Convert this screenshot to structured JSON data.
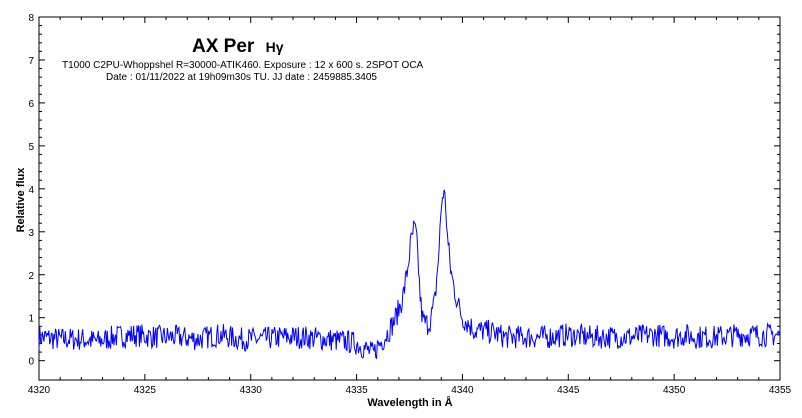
{
  "chart_data": {
    "type": "line",
    "title": "AX Per",
    "title_suffix": "Hγ",
    "subtitle_lines": [
      "T1000 C2PU-Whoppshel R=30000-ATIK460. Exposure : 12 x 600 s. 2SPOT OCA",
      "Date : 01/11/2022 at 19h09m30s TU. JJ date : 2459885.3405"
    ],
    "xlabel": "Wavelength in Å",
    "ylabel": "Relative flux",
    "xlim": [
      4320,
      4355
    ],
    "ylim": [
      -0.45,
      8
    ],
    "xticks": [
      4320,
      4325,
      4330,
      4335,
      4340,
      4345,
      4350,
      4355
    ],
    "yticks": [
      0,
      1,
      2,
      3,
      4,
      5,
      6,
      7,
      8
    ],
    "grid": false,
    "line_color": "#0000ff",
    "series": [
      {
        "x": [
          4320.0,
          4321.0,
          4322.0,
          4322.8,
          4323.5,
          4324.5,
          4325.5,
          4326.5,
          4327.5,
          4328.5,
          4329.5,
          4330.5,
          4331.5,
          4332.5,
          4333.5,
          4334.5,
          4335.0,
          4335.5,
          4335.8,
          4336.0,
          4336.2,
          4336.4,
          4336.6,
          4336.8,
          4337.0,
          4337.2,
          4337.4,
          4337.55,
          4337.7,
          4337.8,
          4337.9,
          4338.0,
          4338.1,
          4338.2,
          4338.35,
          4338.5,
          4338.7,
          4338.9,
          4339.0,
          4339.1,
          4339.2,
          4339.3,
          4339.45,
          4339.6,
          4339.8,
          4340.0,
          4340.3,
          4340.6,
          4341.0,
          4341.5,
          4342.0,
          4343.0,
          4344.0,
          4345.0,
          4346.0,
          4347.0,
          4348.0,
          4349.0,
          4350.0,
          4350.5,
          4351.0,
          4352.0,
          4353.0,
          4354.0,
          4355.0
        ],
        "y": [
          0.55,
          0.5,
          0.5,
          0.45,
          0.55,
          0.6,
          0.55,
          0.55,
          0.5,
          0.6,
          0.5,
          0.5,
          0.55,
          0.55,
          0.5,
          0.45,
          0.4,
          0.25,
          0.15,
          0.35,
          0.45,
          0.6,
          0.75,
          0.95,
          1.2,
          1.5,
          2.1,
          2.7,
          3.05,
          3.0,
          2.4,
          1.5,
          1.0,
          0.9,
          0.85,
          0.95,
          1.4,
          2.6,
          3.6,
          3.95,
          3.7,
          2.8,
          2.1,
          1.7,
          1.3,
          1.0,
          0.85,
          0.7,
          0.7,
          0.65,
          0.55,
          0.55,
          0.55,
          0.6,
          0.55,
          0.55,
          0.55,
          0.6,
          0.55,
          0.6,
          0.55,
          0.55,
          0.6,
          0.6,
          0.6
        ]
      }
    ]
  }
}
